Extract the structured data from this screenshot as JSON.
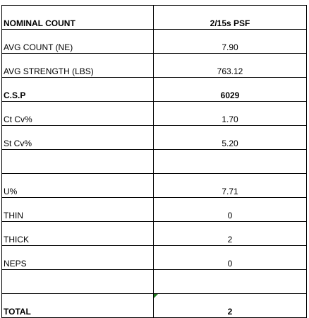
{
  "table": {
    "rows": [
      [
        "NOMINAL COUNT",
        "2/15s PSF"
      ],
      [
        "AVG COUNT (NE)",
        "7.90"
      ],
      [
        "AVG STRENGTH (LBS)",
        "763.12"
      ],
      [
        "C.S.P",
        "6029"
      ],
      [
        "Ct Cv%",
        "1.70"
      ],
      [
        "St Cv%",
        "5.20"
      ],
      [],
      [
        "U%",
        "7.71"
      ],
      [
        "THIN",
        "0"
      ],
      [
        "THICK",
        "2"
      ],
      [
        "NEPS",
        "0"
      ],
      [],
      [
        "TOTAL",
        "2"
      ]
    ]
  }
}
